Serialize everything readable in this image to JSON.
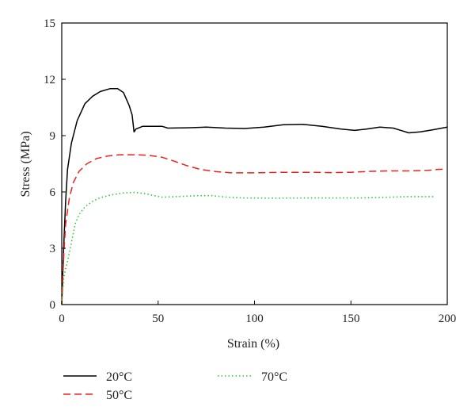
{
  "chart_data": {
    "type": "line",
    "xlabel": "Strain (%)",
    "ylabel": "Stress (MPa)",
    "xlim": [
      0,
      200
    ],
    "ylim": [
      0,
      15
    ],
    "x_ticks": [
      "0",
      "50",
      "100",
      "150",
      "200"
    ],
    "y_ticks": [
      "0",
      "3",
      "6",
      "9",
      "12",
      "15"
    ],
    "grid": false,
    "legend_position": "bottom",
    "series": [
      {
        "name": "20°C",
        "color": "#000000",
        "dash": "solid",
        "points": [
          [
            0,
            0
          ],
          [
            1,
            3
          ],
          [
            2,
            5.5
          ],
          [
            3,
            7.2
          ],
          [
            5,
            8.6
          ],
          [
            8,
            9.8
          ],
          [
            12,
            10.7
          ],
          [
            16,
            11.1
          ],
          [
            20,
            11.35
          ],
          [
            25,
            11.5
          ],
          [
            29,
            11.5
          ],
          [
            32,
            11.3
          ],
          [
            35,
            10.6
          ],
          [
            36.5,
            10.1
          ],
          [
            37.5,
            9.2
          ],
          [
            38.5,
            9.35
          ],
          [
            42,
            9.5
          ],
          [
            48,
            9.5
          ],
          [
            52,
            9.5
          ],
          [
            55,
            9.4
          ],
          [
            65,
            9.42
          ],
          [
            75,
            9.45
          ],
          [
            85,
            9.4
          ],
          [
            95,
            9.38
          ],
          [
            105,
            9.45
          ],
          [
            115,
            9.58
          ],
          [
            125,
            9.6
          ],
          [
            135,
            9.5
          ],
          [
            145,
            9.35
          ],
          [
            152,
            9.28
          ],
          [
            158,
            9.35
          ],
          [
            165,
            9.45
          ],
          [
            172,
            9.4
          ],
          [
            180,
            9.15
          ],
          [
            186,
            9.2
          ],
          [
            192,
            9.3
          ],
          [
            200,
            9.45
          ]
        ]
      },
      {
        "name": "50°C",
        "color": "#e8231f",
        "dash": "dashed",
        "points": [
          [
            0,
            0
          ],
          [
            1,
            2.5
          ],
          [
            2,
            4.3
          ],
          [
            4,
            5.7
          ],
          [
            6,
            6.5
          ],
          [
            9,
            7.1
          ],
          [
            13,
            7.5
          ],
          [
            18,
            7.78
          ],
          [
            24,
            7.92
          ],
          [
            30,
            7.98
          ],
          [
            38,
            7.98
          ],
          [
            45,
            7.95
          ],
          [
            52,
            7.85
          ],
          [
            58,
            7.65
          ],
          [
            65,
            7.4
          ],
          [
            72,
            7.2
          ],
          [
            80,
            7.08
          ],
          [
            88,
            7.02
          ],
          [
            100,
            7.02
          ],
          [
            115,
            7.05
          ],
          [
            130,
            7.05
          ],
          [
            140,
            7.03
          ],
          [
            150,
            7.05
          ],
          [
            160,
            7.1
          ],
          [
            170,
            7.12
          ],
          [
            180,
            7.12
          ],
          [
            190,
            7.15
          ],
          [
            195,
            7.2
          ],
          [
            200,
            7.22
          ]
        ]
      },
      {
        "name": "70°C",
        "color": "#2ec83a",
        "dash": "dotted",
        "points": [
          [
            0,
            0
          ],
          [
            1,
            1.4
          ],
          [
            2,
            1.9
          ],
          [
            3,
            2.3
          ],
          [
            5,
            3.3
          ],
          [
            7,
            4.3
          ],
          [
            9,
            4.8
          ],
          [
            12,
            5.2
          ],
          [
            16,
            5.5
          ],
          [
            20,
            5.7
          ],
          [
            26,
            5.85
          ],
          [
            32,
            5.95
          ],
          [
            38,
            5.98
          ],
          [
            44,
            5.9
          ],
          [
            48,
            5.8
          ],
          [
            52,
            5.72
          ],
          [
            60,
            5.75
          ],
          [
            70,
            5.8
          ],
          [
            78,
            5.8
          ],
          [
            86,
            5.72
          ],
          [
            95,
            5.68
          ],
          [
            110,
            5.67
          ],
          [
            125,
            5.68
          ],
          [
            140,
            5.68
          ],
          [
            155,
            5.68
          ],
          [
            170,
            5.72
          ],
          [
            180,
            5.75
          ],
          [
            193,
            5.75
          ]
        ]
      }
    ]
  }
}
